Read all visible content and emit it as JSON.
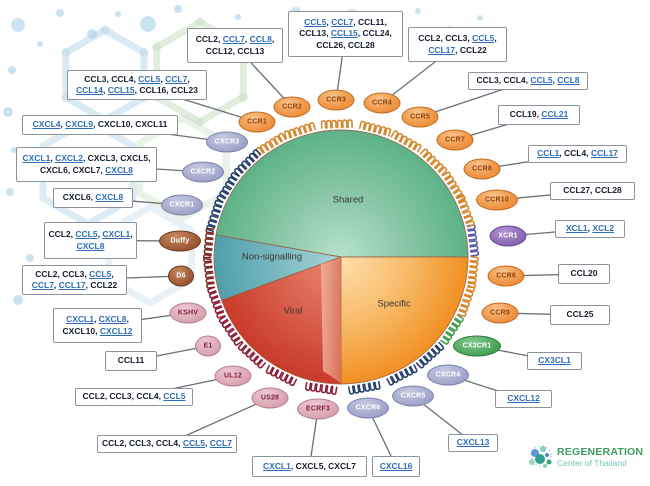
{
  "pie": {
    "sectors": [
      {
        "label": "Shared"
      },
      {
        "label": "Non-signalling"
      },
      {
        "label": "Viral"
      },
      {
        "label": "Specific"
      }
    ]
  },
  "receptors": [
    {
      "label": "CCR2",
      "family": "cc"
    },
    {
      "label": "CCR1",
      "family": "cc"
    },
    {
      "label": "CXCR3",
      "family": "cxc"
    },
    {
      "label": "CXCR2",
      "family": "cxc"
    },
    {
      "label": "CXCR1",
      "family": "cxc"
    },
    {
      "label": "Duffy",
      "family": "ns"
    },
    {
      "label": "D6",
      "family": "ns"
    },
    {
      "label": "KSHV",
      "family": "viral"
    },
    {
      "label": "E1",
      "family": "viral"
    },
    {
      "label": "UL12",
      "family": "viral"
    },
    {
      "label": "US28",
      "family": "viral"
    },
    {
      "label": "ECRF3",
      "family": "viral"
    },
    {
      "label": "CXCR6",
      "family": "cxc"
    },
    {
      "label": "CXCR5",
      "family": "cxc"
    },
    {
      "label": "CXCR4",
      "family": "cxc"
    },
    {
      "label": "CX3CR1",
      "family": "cx3"
    },
    {
      "label": "CCR9",
      "family": "cc"
    },
    {
      "label": "CCR6",
      "family": "cc"
    },
    {
      "label": "XCR1",
      "family": "xcr"
    },
    {
      "label": "CCR10",
      "family": "cc"
    },
    {
      "label": "CCR8",
      "family": "cc"
    },
    {
      "label": "CCR7",
      "family": "cc"
    },
    {
      "label": "CCR5",
      "family": "cc"
    },
    {
      "label": "CCR4",
      "family": "cc"
    },
    {
      "label": "CCR3",
      "family": "cc"
    }
  ],
  "ligand_boxes": [
    {
      "receptor": "CCR2",
      "ligands": [
        {
          "t": "CCL2",
          "link": false
        },
        {
          "t": "CCL7",
          "link": true
        },
        {
          "t": "CCL8",
          "link": true
        },
        {
          "t": "CCL12",
          "link": false
        },
        {
          "t": "CCL13",
          "link": false
        }
      ]
    },
    {
      "receptor": "CCR3",
      "ligands": [
        {
          "t": "CCL5",
          "link": true
        },
        {
          "t": "CCL7",
          "link": true
        },
        {
          "t": "CCL11",
          "link": false
        },
        {
          "t": "CCL13",
          "link": false
        },
        {
          "t": "CCL15",
          "link": true
        },
        {
          "t": "CCL24",
          "link": false
        },
        {
          "t": "CCL26",
          "link": false
        },
        {
          "t": "CCL28",
          "link": false
        }
      ]
    },
    {
      "receptor": "CCR4",
      "ligands": [
        {
          "t": "CCL2",
          "link": false
        },
        {
          "t": "CCL3",
          "link": false
        },
        {
          "t": "CCL5",
          "link": true
        },
        {
          "t": "CCL17",
          "link": true
        },
        {
          "t": "CCL22",
          "link": false
        }
      ]
    },
    {
      "receptor": "CCR1",
      "ligands": [
        {
          "t": "CCL3",
          "link": false
        },
        {
          "t": "CCL4",
          "link": false
        },
        {
          "t": "CCL5",
          "link": true
        },
        {
          "t": "CCL7",
          "link": true
        },
        {
          "t": "CCL14",
          "link": true
        },
        {
          "t": "CCL15",
          "link": true
        },
        {
          "t": "CCL16",
          "link": false
        },
        {
          "t": "CCL23",
          "link": false
        }
      ]
    },
    {
      "receptor": "CCR5",
      "ligands": [
        {
          "t": "CCL3",
          "link": false
        },
        {
          "t": "CCL4",
          "link": false
        },
        {
          "t": "CCL5",
          "link": true
        },
        {
          "t": "CCL8",
          "link": true
        }
      ]
    },
    {
      "receptor": "CXCR3",
      "ligands": [
        {
          "t": "CXCL4",
          "link": true
        },
        {
          "t": "CXCL9",
          "link": true
        },
        {
          "t": "CXCL10",
          "link": false
        },
        {
          "t": "CXCL11",
          "link": false
        }
      ]
    },
    {
      "receptor": "CCR7",
      "ligands": [
        {
          "t": "CCL19",
          "link": false
        },
        {
          "t": "CCL21",
          "link": true
        }
      ]
    },
    {
      "receptor": "CXCR2",
      "ligands": [
        {
          "t": "CXCL1",
          "link": true
        },
        {
          "t": "CXCL2",
          "link": true
        },
        {
          "t": "CXCL3",
          "link": false
        },
        {
          "t": "CXCL5",
          "link": false
        },
        {
          "t": "CXCL6",
          "link": false
        },
        {
          "t": "CXCL7",
          "link": false
        },
        {
          "t": "CXCL8",
          "link": true
        }
      ]
    },
    {
      "receptor": "CCR8",
      "ligands": [
        {
          "t": "CCL1",
          "link": true
        },
        {
          "t": "CCL4",
          "link": false
        },
        {
          "t": "CCL17",
          "link": true
        }
      ]
    },
    {
      "receptor": "CXCR1",
      "ligands": [
        {
          "t": "CXCL6",
          "link": false
        },
        {
          "t": "CXCL8",
          "link": true
        }
      ]
    },
    {
      "receptor": "CCR10",
      "ligands": [
        {
          "t": "CCL27",
          "link": false
        },
        {
          "t": "CCL28",
          "link": false
        }
      ]
    },
    {
      "receptor": "Duffy",
      "ligands": [
        {
          "t": "CCL2",
          "link": false
        },
        {
          "t": "CCL5",
          "link": true
        },
        {
          "t": "CXCL1",
          "link": true
        },
        {
          "t": "CXCL8",
          "link": true
        }
      ]
    },
    {
      "receptor": "XCR1",
      "ligands": [
        {
          "t": "XCL1",
          "link": true
        },
        {
          "t": "XCL2",
          "link": true
        }
      ]
    },
    {
      "receptor": "D6",
      "ligands": [
        {
          "t": "CCL2",
          "link": false
        },
        {
          "t": "CCL3",
          "link": false
        },
        {
          "t": "CCL5",
          "link": true
        },
        {
          "t": "CCL7",
          "link": true
        },
        {
          "t": "CCL17",
          "link": true
        },
        {
          "t": "CCL22",
          "link": false
        }
      ]
    },
    {
      "receptor": "CCR6",
      "ligands": [
        {
          "t": "CCL20",
          "link": false
        }
      ]
    },
    {
      "receptor": "CCR9",
      "ligands": [
        {
          "t": "CCL25",
          "link": false
        }
      ]
    },
    {
      "receptor": "KSHV",
      "ligands": [
        {
          "t": "CXCL1",
          "link": true
        },
        {
          "t": "CXCL8",
          "link": true
        },
        {
          "t": "CXCL10",
          "link": false
        },
        {
          "t": "CXCL12",
          "link": true
        }
      ]
    },
    {
      "receptor": "CX3CR1",
      "ligands": [
        {
          "t": "CX3CL1",
          "link": true
        }
      ]
    },
    {
      "receptor": "E1",
      "ligands": [
        {
          "t": "CCL11",
          "link": false
        }
      ]
    },
    {
      "receptor": "CXCR4",
      "ligands": [
        {
          "t": "CXCL12",
          "link": true
        }
      ]
    },
    {
      "receptor": "UL12",
      "ligands": [
        {
          "t": "CCL2",
          "link": false
        },
        {
          "t": "CCL3",
          "link": false
        },
        {
          "t": "CCL4",
          "link": false
        },
        {
          "t": "CCL5",
          "link": true
        }
      ]
    },
    {
      "receptor": "CXCR5",
      "ligands": [
        {
          "t": "CXCL13",
          "link": true
        }
      ]
    },
    {
      "receptor": "US28",
      "ligands": [
        {
          "t": "CCL2",
          "link": false
        },
        {
          "t": "CCL3",
          "link": false
        },
        {
          "t": "CCL4",
          "link": false
        },
        {
          "t": "CCL5",
          "link": true
        },
        {
          "t": "CCL7",
          "link": true
        }
      ]
    },
    {
      "receptor": "ECRF3",
      "ligands": [
        {
          "t": "CXCL1",
          "link": true
        },
        {
          "t": "CXCL5",
          "link": false
        },
        {
          "t": "CXCL7",
          "link": false
        }
      ]
    },
    {
      "receptor": "CXCR6",
      "ligands": [
        {
          "t": "CXCL16",
          "link": true
        }
      ]
    }
  ],
  "logo": {
    "line1": "REGENERATION",
    "line2": "Center of Thailand"
  },
  "colors": {
    "sector_shared": "#5db287",
    "sector_non_signalling": "#4f9fab",
    "sector_viral": "#c93a2a",
    "sector_specific": "#f19022",
    "link_text": "#2f6db8",
    "oval_cc": "#f0984a",
    "oval_cxc": "#9da1c8",
    "oval_xcr": "#8663ae",
    "oval_cx3cr1": "#42a053",
    "oval_non_signalling": "#96522e",
    "oval_viral": "#d8a0af",
    "logo_green": "#3f9d5f",
    "logo_teal": "#74c5bd"
  }
}
